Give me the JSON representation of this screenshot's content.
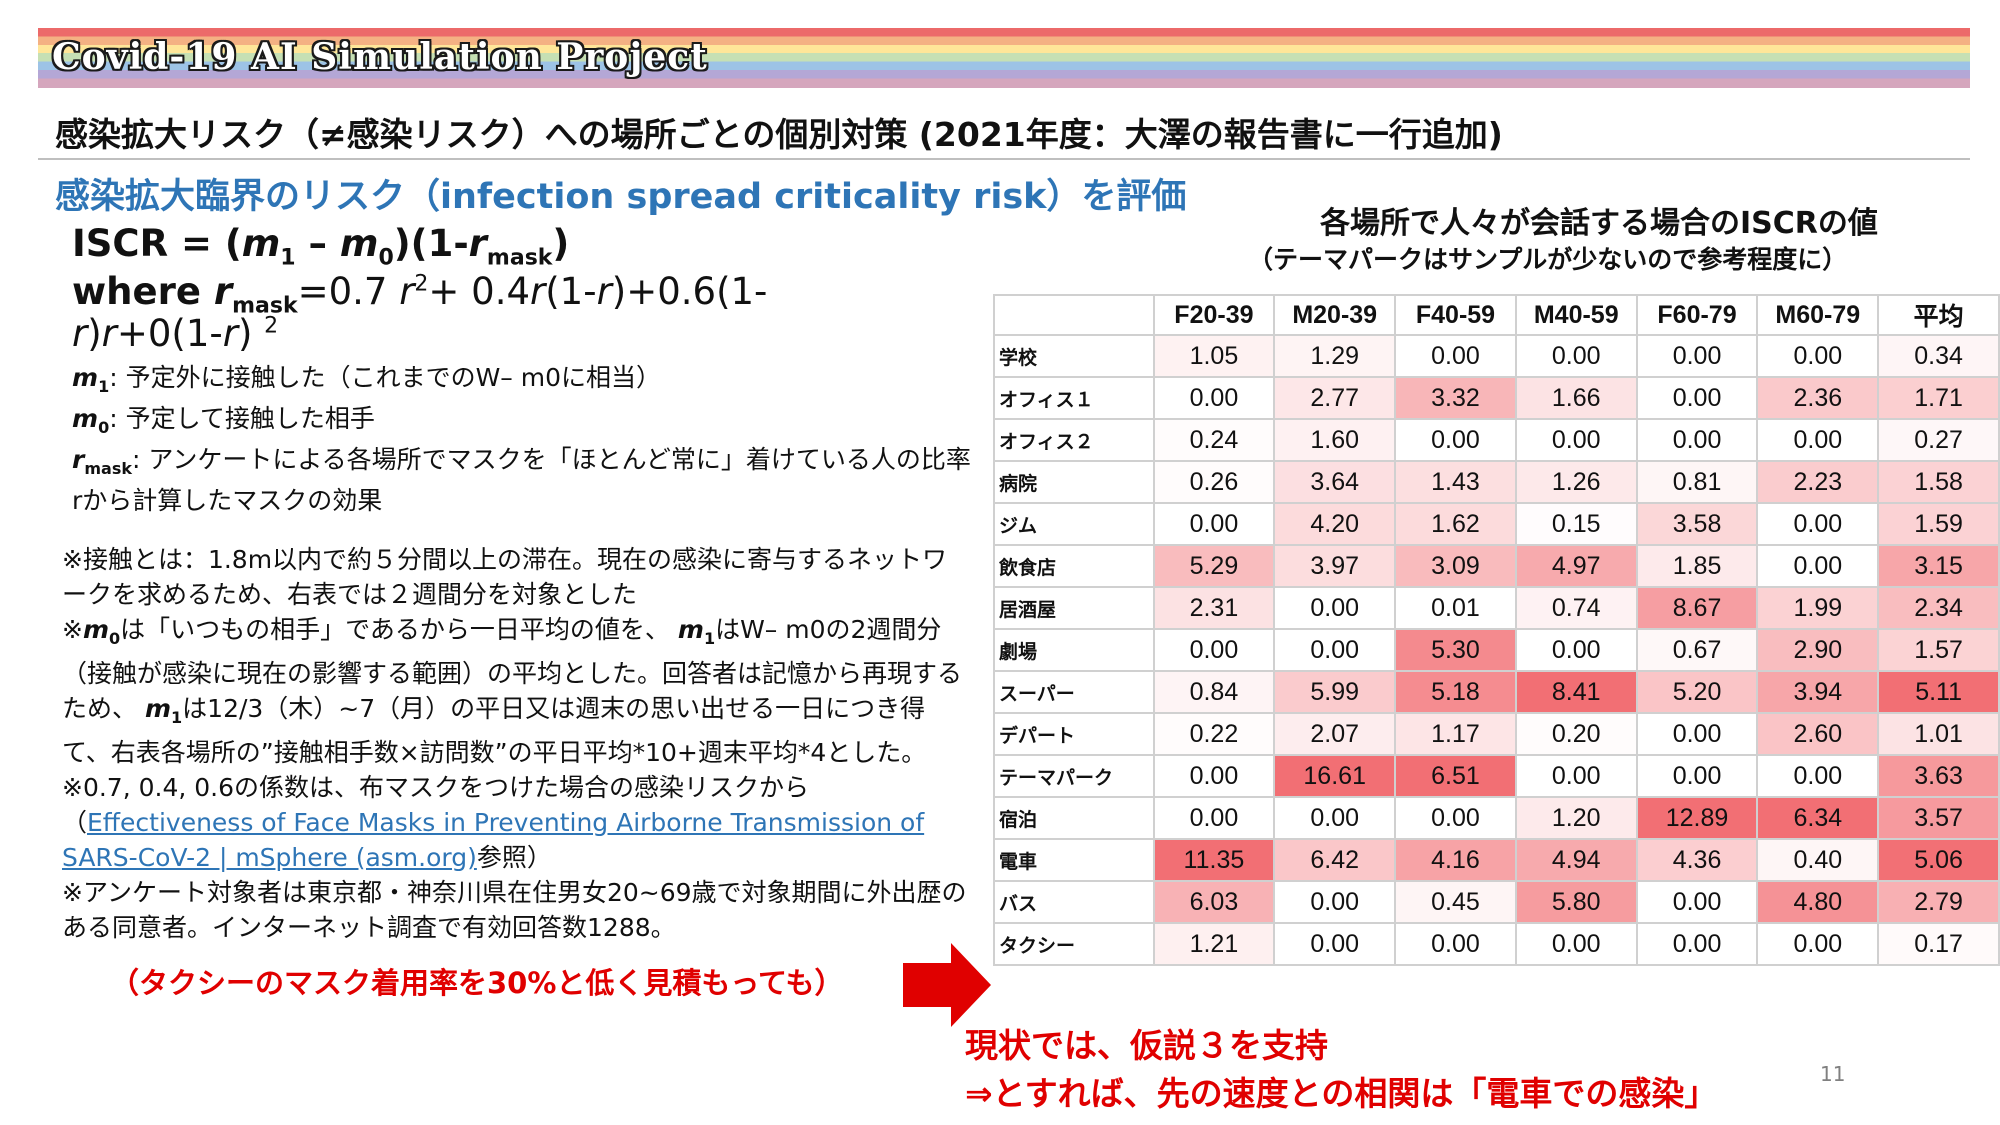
{
  "banner": {
    "title": "Covid-19 AI Simulation Project"
  },
  "heading": "感染拡大リスク（≠感染リスク）への場所ごとの個別対策 (2021年度：大澤の報告書に一行追加)",
  "subheading": "感染拡大臨界のリスク（infection spread criticality risk）を評価",
  "formula": {
    "line1": "ISCR = (m1 – m0)(1-rmask)",
    "line2": "where rmask=0.7 r2+ 0.4r(1-r)+0.6(1-",
    "line3": "r)r+0(1-r) 2"
  },
  "definitions": {
    "m1": "予定外に接触した（これまでのW– m0に相当）",
    "m0": "予定して接触した相手",
    "rmask": "アンケートによる各場所でマスクを「ほとんど常に」着けている人の比率rから計算したマスクの効果"
  },
  "notes": {
    "note1": "※接触とは：1.8m以内で約５分間以上の滞在。現在の感染に寄与するネットワークを求めるため、右表では２週間分を対象とした",
    "note2a": "※",
    "note2b": "は「いつもの相手」であるから一日平均の値を、",
    "note2c": "はW– m0の2週間分（接触が感染に現在の影響する範囲）の平均とした。回答者は記憶から再現するため、",
    "note2d": "は12/3（木）~7（月）の平日又は週末の思い出せる一日につき得て、右表各場所の”接触相手数×訪問数”の平日平均*10+週末平均*4とした。",
    "note3a": "※0.7, 0.4, 0.6の係数は、布マスクをつけた場合の感染リスクから（",
    "note3_link": "Effectiveness of Face Masks in Preventing Airborne Transmission of SARS-CoV-2 | mSphere (asm.org)",
    "note3b": "参照）",
    "note4": "※アンケート対象者は東京都・神奈川県在住男女20~69歳で対象期間に外出歴のある同意者。インターネット調査で有効回答数1288。"
  },
  "red_note": "（タクシーのマスク着用率を30%と低く見積もっても）",
  "conclusion": {
    "line1": "現状では、仮説３を支持",
    "line2": "⇒とすれば、先の速度との相関は「電車での感染」"
  },
  "slide_number": "11",
  "table": {
    "title": "各場所で人々が会話する場合のISCRの値",
    "subtitle": "（テーマパークはサンプルが少ないので参考程度に）",
    "columns": [
      "F20-39",
      "M20-39",
      "F40-59",
      "M40-59",
      "F60-79",
      "M60-79",
      "平均"
    ],
    "rows": [
      {
        "label": "学校",
        "values": [
          "1.05",
          "1.29",
          "0.00",
          "0.00",
          "0.00",
          "0.00",
          "0.34"
        ]
      },
      {
        "label": "オフィス１",
        "values": [
          "0.00",
          "2.77",
          "3.32",
          "1.66",
          "0.00",
          "2.36",
          "1.71"
        ]
      },
      {
        "label": "オフィス２",
        "values": [
          "0.24",
          "1.60",
          "0.00",
          "0.00",
          "0.00",
          "0.00",
          "0.27"
        ]
      },
      {
        "label": "病院",
        "values": [
          "0.26",
          "3.64",
          "1.43",
          "1.26",
          "0.81",
          "2.23",
          "1.58"
        ]
      },
      {
        "label": "ジム",
        "values": [
          "0.00",
          "4.20",
          "1.62",
          "0.15",
          "3.58",
          "0.00",
          "1.59"
        ]
      },
      {
        "label": "飲食店",
        "values": [
          "5.29",
          "3.97",
          "3.09",
          "4.97",
          "1.85",
          "0.00",
          "3.15"
        ]
      },
      {
        "label": "居酒屋",
        "values": [
          "2.31",
          "0.00",
          "0.01",
          "0.74",
          "8.67",
          "1.99",
          "2.34"
        ]
      },
      {
        "label": "劇場",
        "values": [
          "0.00",
          "0.00",
          "5.30",
          "0.00",
          "0.67",
          "2.90",
          "1.57"
        ]
      },
      {
        "label": "スーパー",
        "values": [
          "0.84",
          "5.99",
          "5.18",
          "8.41",
          "5.20",
          "3.94",
          "5.11"
        ]
      },
      {
        "label": "デパート",
        "values": [
          "0.22",
          "2.07",
          "1.17",
          "0.20",
          "0.00",
          "2.60",
          "1.01"
        ]
      },
      {
        "label": "テーマパーク",
        "values": [
          "0.00",
          "16.61",
          "6.51",
          "0.00",
          "0.00",
          "0.00",
          "3.63"
        ]
      },
      {
        "label": "宿泊",
        "values": [
          "0.00",
          "0.00",
          "0.00",
          "1.20",
          "12.89",
          "6.34",
          "3.57"
        ]
      },
      {
        "label": "電車",
        "values": [
          "11.35",
          "6.42",
          "4.16",
          "4.94",
          "4.36",
          "0.40",
          "5.06"
        ]
      },
      {
        "label": "バス",
        "values": [
          "6.03",
          "0.00",
          "0.45",
          "5.80",
          "0.00",
          "4.80",
          "2.79"
        ]
      },
      {
        "label": "タクシー",
        "values": [
          "1.21",
          "0.00",
          "0.00",
          "0.00",
          "0.00",
          "0.00",
          "0.17"
        ]
      }
    ]
  }
}
